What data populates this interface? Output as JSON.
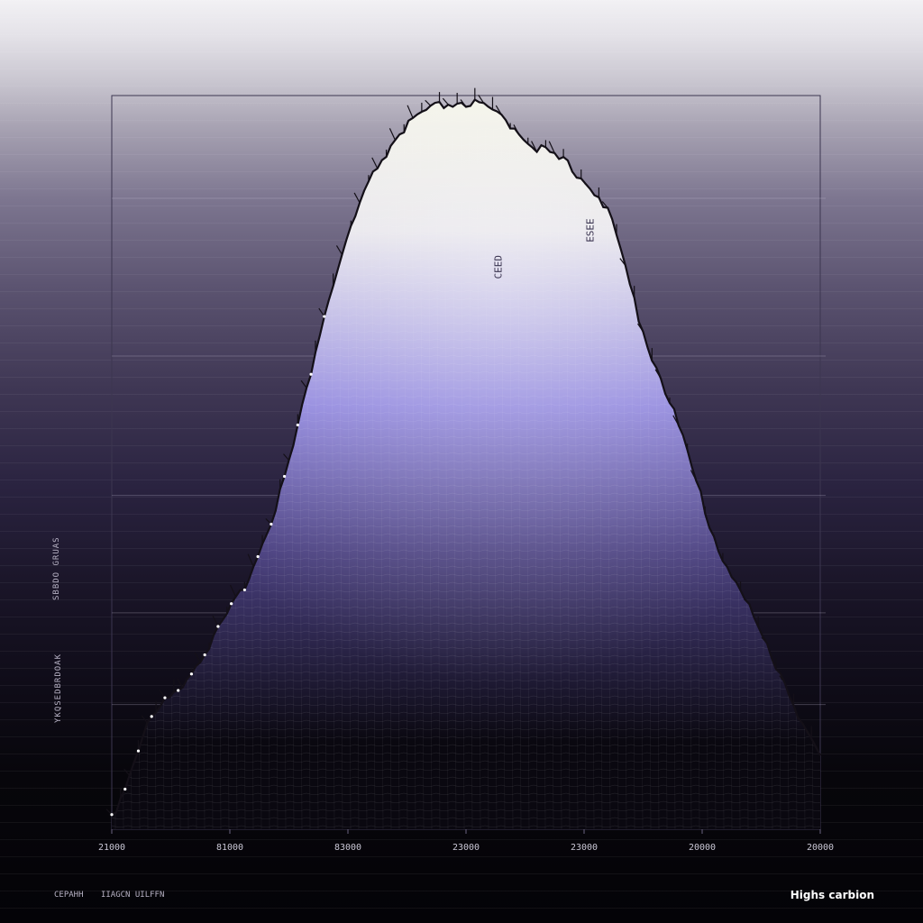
{
  "chart_data": {
    "type": "area",
    "title": "Highs carbion",
    "xlabel": "",
    "ylabel": "",
    "x_tick_labels": [
      "21000",
      "81000",
      "83000",
      "23000",
      "23000",
      "20000",
      "20000"
    ],
    "y_axis_text": [
      "SBBDO GRUAS",
      "YKQSEDBRDOAK"
    ],
    "footer_labels": [
      "CEPAHH",
      "IIAGCN UILFFN"
    ],
    "peak_annotations": [
      "CEED",
      "ESEE"
    ],
    "x": [
      0,
      0.05,
      0.1,
      0.15,
      0.2,
      0.25,
      0.3,
      0.35,
      0.4,
      0.45,
      0.5,
      0.55,
      0.6,
      0.65,
      0.7,
      0.75,
      0.8,
      0.85,
      0.9,
      0.95,
      1.0
    ],
    "values": [
      0.02,
      0.14,
      0.2,
      0.27,
      0.36,
      0.5,
      0.7,
      0.85,
      0.94,
      0.98,
      0.99,
      0.97,
      0.93,
      0.9,
      0.84,
      0.68,
      0.55,
      0.4,
      0.3,
      0.2,
      0.1
    ],
    "ylim": [
      0,
      1
    ],
    "grid": true,
    "colors": {
      "area_top": "#f2f2e6",
      "area_mid": "#8a80dc",
      "area_bottom": "#0a0810",
      "outline": "#141018",
      "mesh": "#ffffff"
    }
  }
}
